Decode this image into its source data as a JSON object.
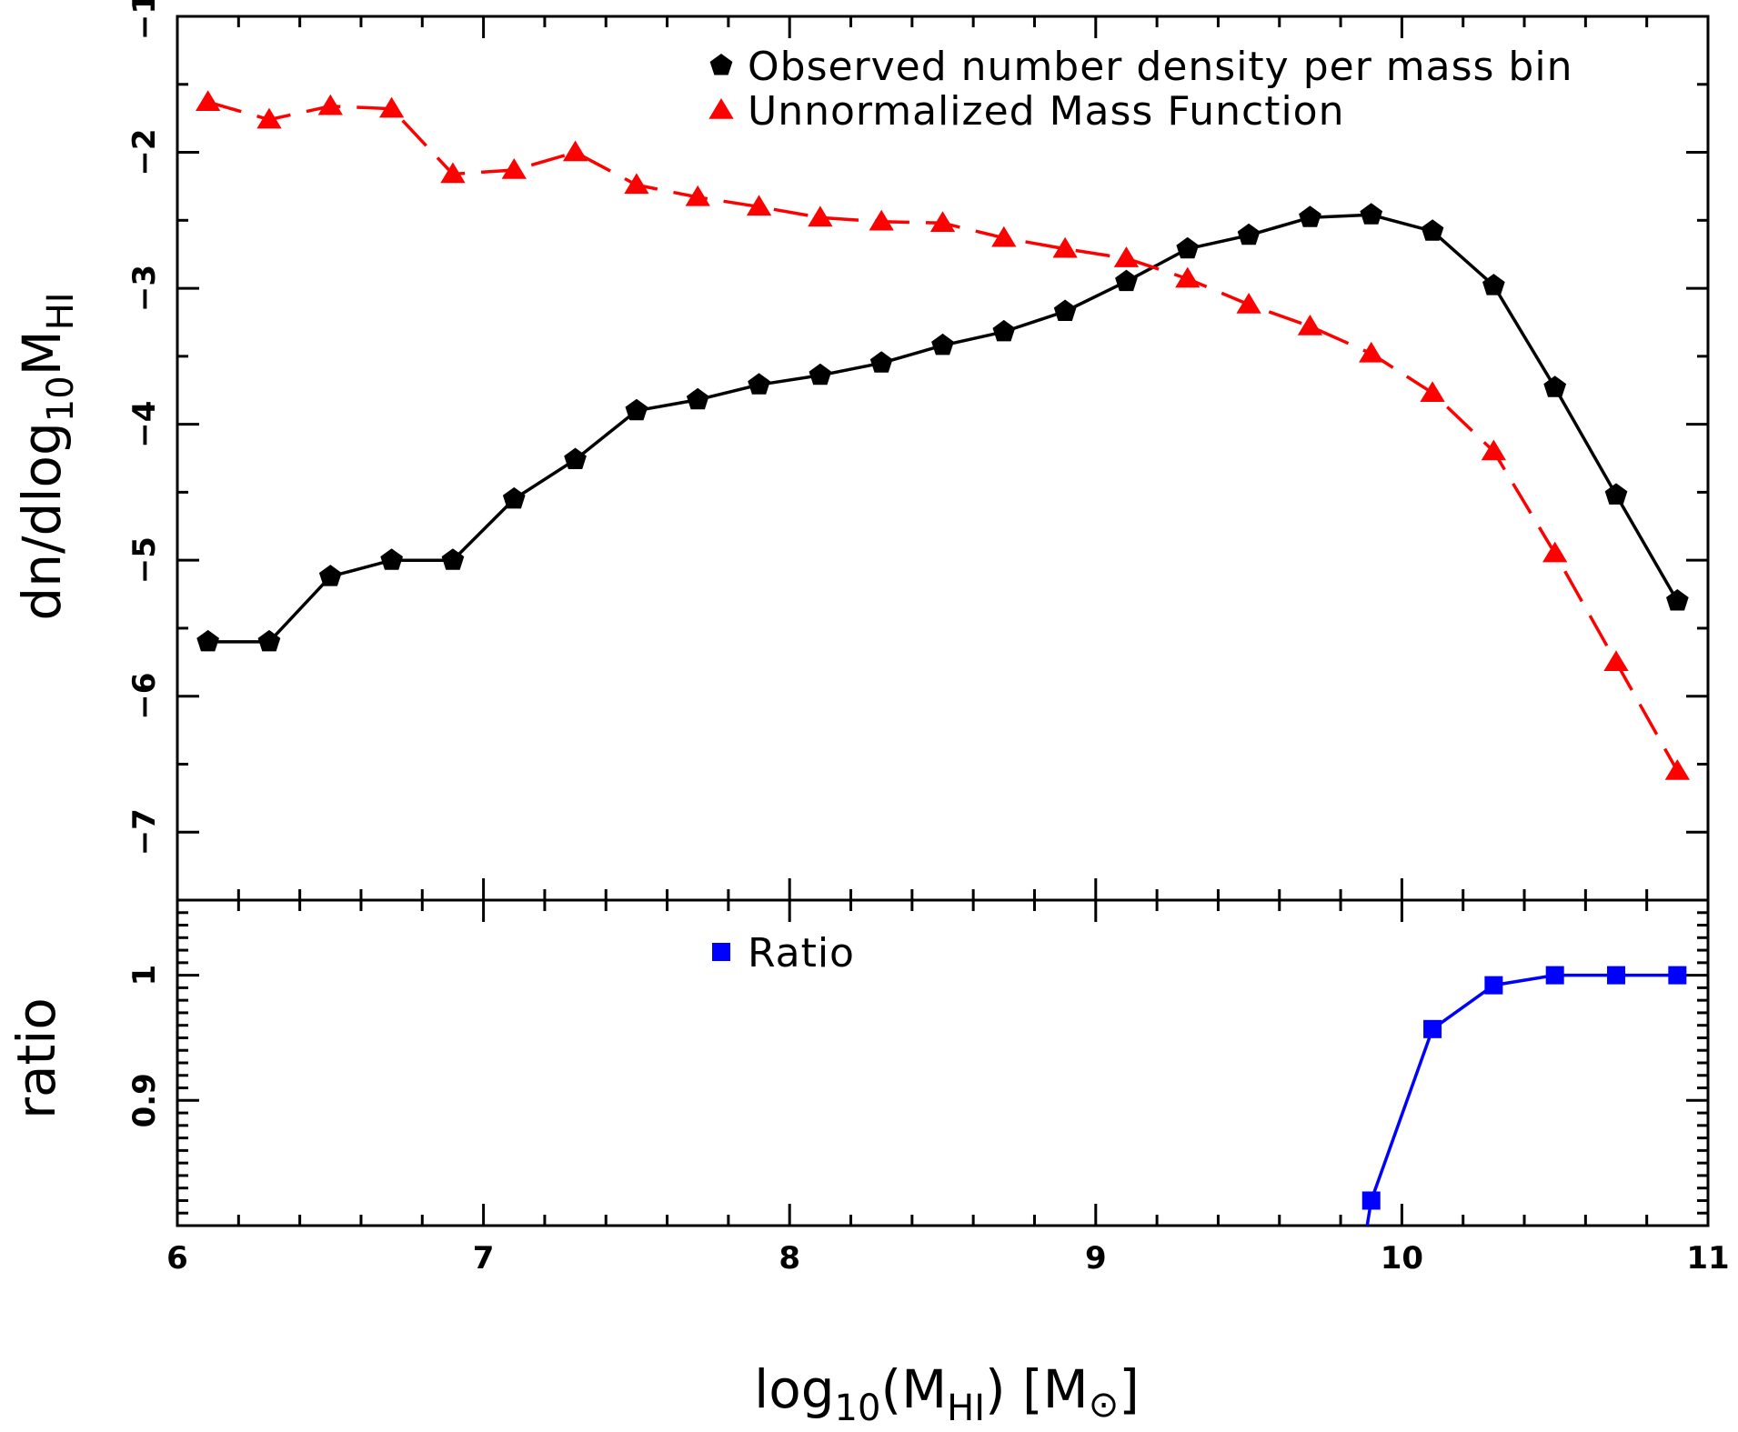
{
  "chart_data": [
    {
      "type": "line",
      "panel": "top",
      "ylabel": {
        "main": "dn/dlog",
        "sub": "10",
        "main2": "M",
        "sub2": "HI"
      },
      "ylim": [
        -7.5,
        -1
      ],
      "yticks": [
        -7,
        -6,
        -5,
        -4,
        -3,
        -2,
        -1
      ],
      "ytick_labels": [
        "−7",
        "−6",
        "−5",
        "−4",
        "−3",
        "−2",
        "−1"
      ],
      "xlim": [
        6,
        11
      ],
      "legend_position": "top-right",
      "series": [
        {
          "name": "Observed number density per mass bin",
          "color": "#000000",
          "marker": "pentagon",
          "linestyle": "solid",
          "x": [
            6.1,
            6.3,
            6.5,
            6.7,
            6.9,
            7.1,
            7.3,
            7.5,
            7.7,
            7.9,
            8.1,
            8.3,
            8.5,
            8.7,
            8.9,
            9.1,
            9.3,
            9.5,
            9.7,
            9.9,
            10.1,
            10.3,
            10.5,
            10.7,
            10.9
          ],
          "y": [
            -5.6,
            -5.6,
            -5.12,
            -5.0,
            -5.0,
            -4.55,
            -4.26,
            -3.9,
            -3.82,
            -3.71,
            -3.64,
            -3.55,
            -3.42,
            -3.32,
            -3.17,
            -2.95,
            -2.71,
            -2.61,
            -2.48,
            -2.46,
            -2.58,
            -2.98,
            -3.73,
            -4.52,
            -5.3
          ]
        },
        {
          "name": "Unnormalized Mass Function",
          "color": "#ff0000",
          "marker": "triangle",
          "linestyle": "dashed",
          "x": [
            6.1,
            6.3,
            6.5,
            6.7,
            6.9,
            7.1,
            7.3,
            7.5,
            7.7,
            7.9,
            8.1,
            8.3,
            8.5,
            8.7,
            8.9,
            9.1,
            9.3,
            9.5,
            9.7,
            9.9,
            10.1,
            10.3,
            10.5,
            10.7,
            10.9
          ],
          "y": [
            -1.63,
            -1.76,
            -1.66,
            -1.68,
            -2.16,
            -2.13,
            -2.0,
            -2.24,
            -2.33,
            -2.4,
            -2.48,
            -2.51,
            -2.52,
            -2.63,
            -2.71,
            -2.78,
            -2.93,
            -3.12,
            -3.28,
            -3.48,
            -3.77,
            -4.2,
            -4.95,
            -5.75,
            -6.55
          ]
        }
      ]
    },
    {
      "type": "line",
      "panel": "bottom",
      "xlabel": {
        "main": "log",
        "sub": "10",
        "main2": "(M",
        "sub2": "HI",
        "main3": ")   [M",
        "symbol": "⊙",
        "main4": "]"
      },
      "ylabel": "ratio",
      "xlim": [
        6,
        11
      ],
      "xticks": [
        6,
        7,
        8,
        9,
        10,
        11
      ],
      "xtick_labels": [
        "6",
        "7",
        "8",
        "9",
        "10",
        "11"
      ],
      "ylim": [
        0.8,
        1.06
      ],
      "yticks": [
        0.9,
        1
      ],
      "ytick_labels": [
        "0.9",
        "1"
      ],
      "legend_position": "top-center",
      "series": [
        {
          "name": "Ratio",
          "color": "#0000ff",
          "marker": "square",
          "linestyle": "solid",
          "x": [
            9.9,
            10.1,
            10.3,
            10.5,
            10.7,
            10.9
          ],
          "y": [
            0.82,
            0.957,
            0.992,
            1.0,
            1.0,
            1.0
          ],
          "extends_below_axis_from": 9.88
        }
      ]
    }
  ]
}
